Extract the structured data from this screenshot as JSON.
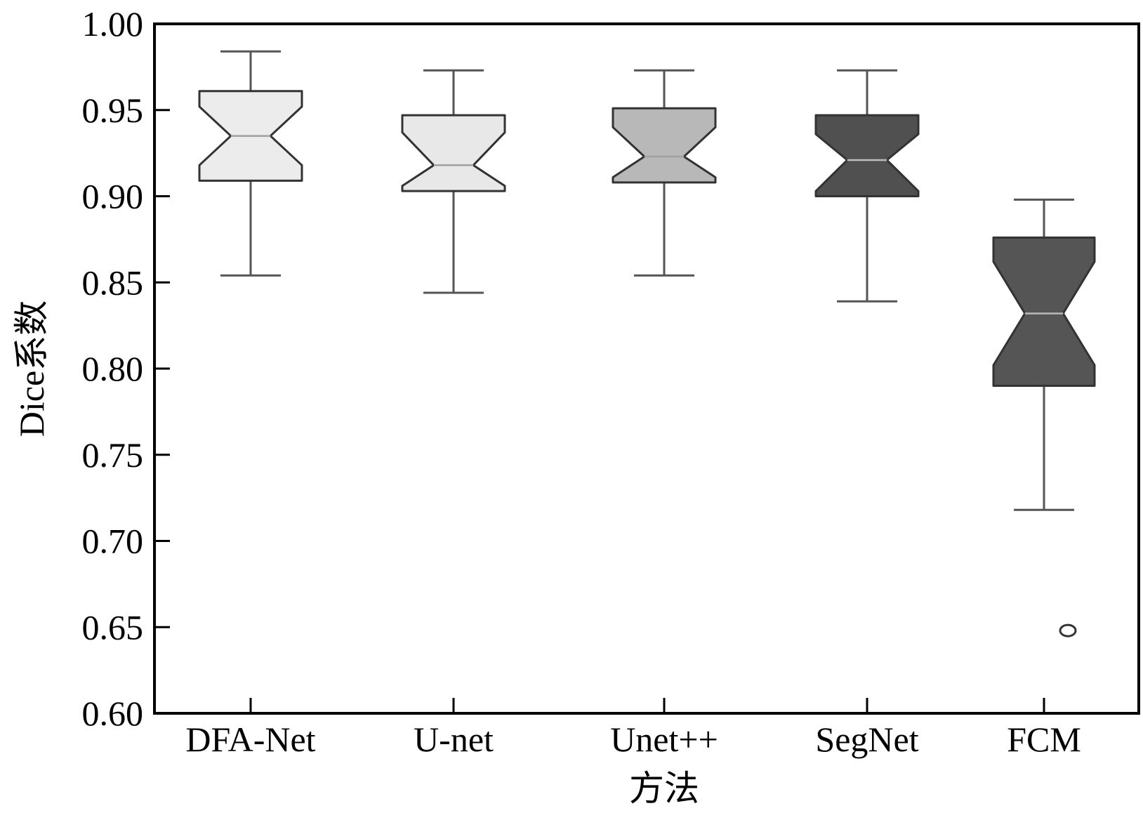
{
  "chart_data": {
    "type": "boxplot",
    "notched": true,
    "xlabel": "方法",
    "ylabel": "Dice系数",
    "ylim": [
      0.6,
      1.0
    ],
    "yticks": [
      "0.60",
      "0.65",
      "0.70",
      "0.75",
      "0.80",
      "0.85",
      "0.90",
      "0.95",
      "1.00"
    ],
    "categories": [
      "DFA-Net",
      "U-net",
      "Unet++",
      "SegNet",
      "FCM"
    ],
    "series": [
      {
        "category": "DFA-Net",
        "whisker_low": 0.854,
        "q1": 0.909,
        "median": 0.935,
        "q3": 0.961,
        "whisker_high": 0.984,
        "notch_low": 0.918,
        "notch_high": 0.952,
        "fill": "#ececec",
        "outliers": []
      },
      {
        "category": "U-net",
        "whisker_low": 0.844,
        "q1": 0.903,
        "median": 0.918,
        "q3": 0.947,
        "whisker_high": 0.973,
        "notch_low": 0.906,
        "notch_high": 0.937,
        "fill": "#e8e8e8",
        "outliers": []
      },
      {
        "category": "Unet++",
        "whisker_low": 0.854,
        "q1": 0.908,
        "median": 0.923,
        "q3": 0.951,
        "whisker_high": 0.973,
        "notch_low": 0.911,
        "notch_high": 0.94,
        "fill": "#b8b8b8",
        "outliers": []
      },
      {
        "category": "SegNet",
        "whisker_low": 0.839,
        "q1": 0.9,
        "median": 0.921,
        "q3": 0.947,
        "whisker_high": 0.973,
        "notch_low": 0.903,
        "notch_high": 0.936,
        "fill": "#505050",
        "outliers": []
      },
      {
        "category": "FCM",
        "whisker_low": 0.718,
        "q1": 0.79,
        "median": 0.832,
        "q3": 0.876,
        "whisker_high": 0.898,
        "notch_low": 0.802,
        "notch_high": 0.862,
        "fill": "#555555",
        "outliers": [
          0.648
        ]
      }
    ],
    "grid": false,
    "legend": "none",
    "colors": {
      "axis": "#000000",
      "box_edge": "#333333",
      "whisker": "#555555",
      "median_light": "#a0a0a0",
      "median_dark": "#bbbbbb"
    }
  }
}
